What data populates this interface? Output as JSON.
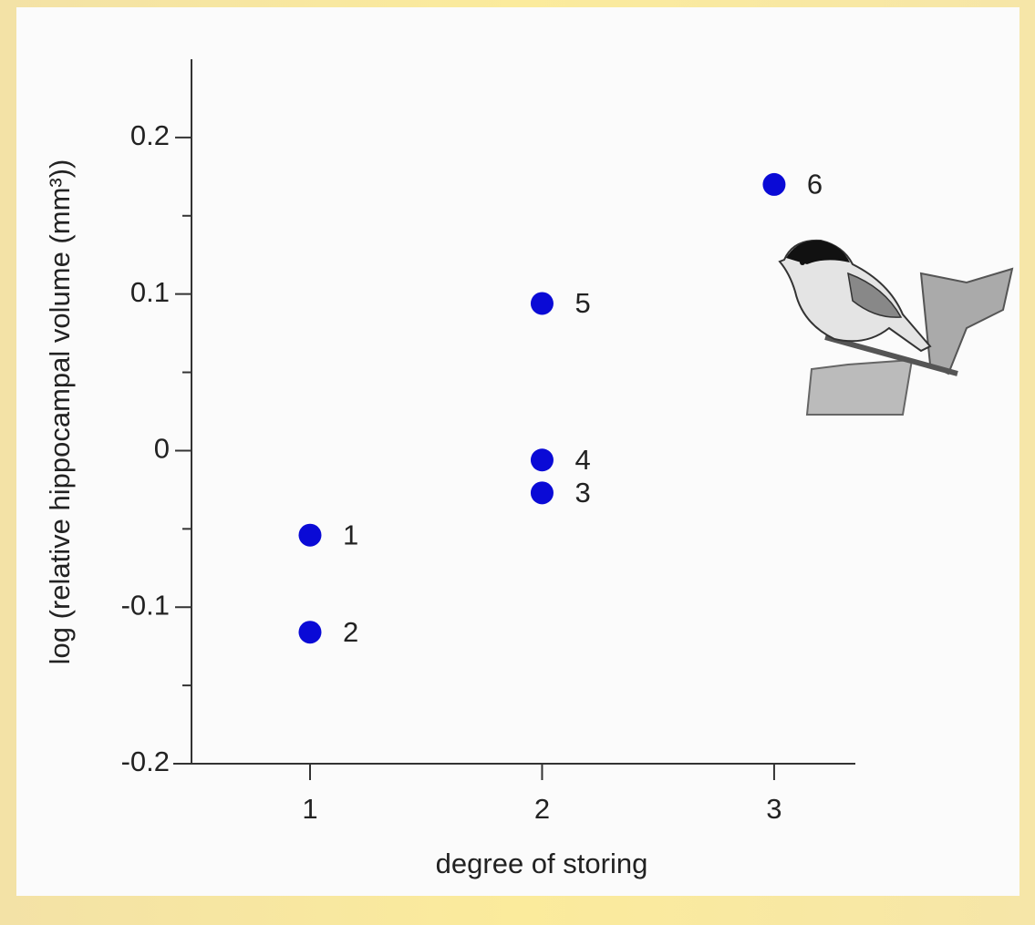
{
  "chart_data": {
    "type": "scatter",
    "x_label": "degree of storing",
    "y_label": "log (relative hippocampal volume (mm³))",
    "x": [
      1,
      1,
      2,
      2,
      2,
      3
    ],
    "values": [
      -0.054,
      -0.116,
      -0.027,
      -0.006,
      0.094,
      0.17
    ],
    "point_labels": [
      "1",
      "2",
      "3",
      "4",
      "5",
      "6"
    ],
    "color": "#0a0ad6",
    "xlim": [
      0.5,
      3.35
    ],
    "xticks": [
      1,
      2,
      3
    ],
    "ylim": [
      -0.2,
      0.25
    ],
    "yticks": [
      -0.2,
      -0.1,
      0,
      0.1,
      0.2
    ],
    "yminorticks": [
      -0.15,
      -0.05,
      0.05,
      0.15
    ]
  }
}
